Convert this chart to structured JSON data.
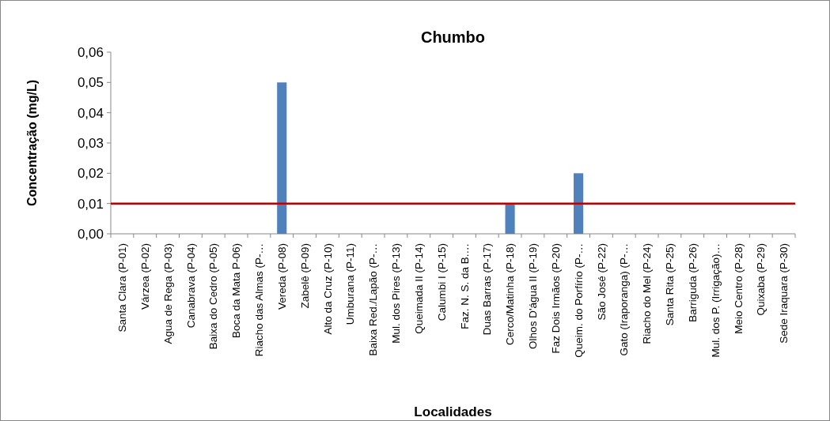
{
  "chart_data": {
    "type": "bar",
    "title": "Chumbo",
    "xlabel": "Localidades",
    "ylabel": "Concentração (mg/L)",
    "categories": [
      "Santa Clara (P-01)",
      "Várzea (P-02)",
      "Agua de Rega (P-03)",
      "Canabrava (P-04)",
      "Baixa do Cedro (P-05)",
      "Boca da Mata P-06)",
      "Riacho das Almas (P-…",
      "Vereda (P-08)",
      "Zabelê (P-09)",
      "Alto da Cruz (P-10)",
      "Umburana (P-11)",
      "Baixa Red./Lapão (P-…",
      "Mul. dos Pires (P-13)",
      "Queimada II (P-14)",
      "Calumbi I (P-15)",
      "Faz. N. S. da B.…",
      "Duas Barras (P-17)",
      "Cerco/Matinha (P-18)",
      "Olhos D'água II (P-19)",
      "Faz Dois Irmãos (P-20)",
      "Queim. do Porfírio (P-…",
      "São José (P-22)",
      "Gato (Iraporanga) (P-…",
      "Riacho do Mel (P-24)",
      "Santa Rita (P-25)",
      "Barriguda (P-26)",
      "Mul. dos P. (Irrigação)…",
      "Meio Centro (P-28)",
      "Quixaba (P-29)",
      "Sede Iraquara (P-30)"
    ],
    "values": [
      0,
      0,
      0,
      0,
      0,
      0,
      0,
      0.05,
      0,
      0,
      0,
      0,
      0,
      0,
      0,
      0,
      0,
      0.01,
      0,
      0,
      0.02,
      0,
      0,
      0,
      0,
      0,
      0,
      0,
      0,
      0
    ],
    "color": "#4f81bd",
    "ylim": [
      0,
      0.06
    ],
    "yticks": [
      {
        "value": 0,
        "label": "0,00"
      },
      {
        "value": 0.01,
        "label": "0,01"
      },
      {
        "value": 0.02,
        "label": "0,02"
      },
      {
        "value": 0.03,
        "label": "0,03"
      },
      {
        "value": 0.04,
        "label": "0,04"
      },
      {
        "value": 0.05,
        "label": "0,05"
      },
      {
        "value": 0.06,
        "label": "0,06"
      }
    ],
    "ref_lines": [
      {
        "axis": "y",
        "value": 0.01,
        "color": "#c00000"
      }
    ]
  }
}
